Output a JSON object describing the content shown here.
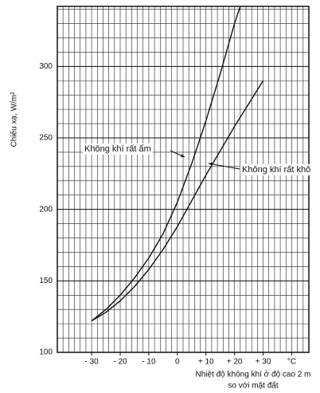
{
  "chart_data": {
    "type": "line",
    "ylabel": "Chiếu xạ, W/m²",
    "xlabel": [
      "Nhiệt độ không khí ở độ cao 2 m",
      "so với mặt đất"
    ],
    "xlim": [
      -42,
      46
    ],
    "ylim": [
      100,
      342
    ],
    "xticks": [
      {
        "value": -30,
        "label": "- 30"
      },
      {
        "value": -20,
        "label": "- 20"
      },
      {
        "value": -10,
        "label": "- 10"
      },
      0,
      {
        "value": 10,
        "label": "+ 10"
      },
      {
        "value": 20,
        "label": "+ 20"
      },
      {
        "value": 30,
        "label": "+ 30"
      },
      {
        "value": 40,
        "label": "°C"
      }
    ],
    "yticks": [
      100,
      150,
      200,
      250,
      300
    ],
    "grid": true,
    "series": [
      {
        "name": "Không khí rất ẩm",
        "color": "#111111",
        "x": [
          -30,
          -25,
          -20,
          -15,
          -10,
          -5,
          0,
          5,
          10,
          15,
          20,
          22
        ],
        "values": [
          122,
          130,
          140,
          152,
          166,
          183,
          205,
          232,
          262,
          295,
          330,
          342
        ]
      },
      {
        "name": "Không khí rất khô",
        "color": "#111111",
        "x": [
          -30,
          -25,
          -20,
          -15,
          -10,
          -5,
          0,
          5,
          10,
          15,
          20,
          25,
          30
        ],
        "values": [
          122,
          128,
          136,
          146,
          158,
          172,
          188,
          206,
          224,
          241,
          258,
          274,
          290
        ]
      }
    ]
  }
}
